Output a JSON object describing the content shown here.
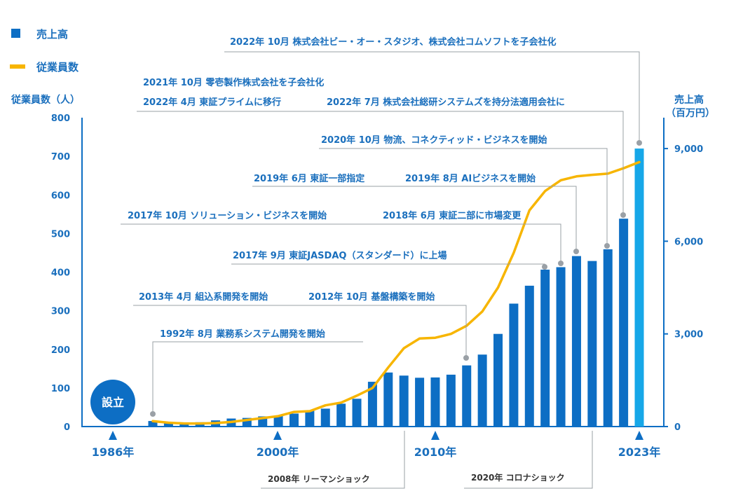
{
  "legend": {
    "sales_label": "売上高",
    "employees_label": "従業員数"
  },
  "colors": {
    "bar": "#0d6ec4",
    "bar_latest": "#16a7e8",
    "line": "#f7b500",
    "text": "#1a6fbd",
    "axis": "#0d6ec4",
    "marker": "#9aa0a6"
  },
  "chart_data": {
    "type": "bar",
    "title": "",
    "xlabel": "",
    "left_axis": {
      "title": "従業員数（人）",
      "min": 0,
      "max": 800,
      "ticks": [
        "0",
        "100",
        "200",
        "300",
        "400",
        "500",
        "600",
        "700",
        "800"
      ]
    },
    "right_axis": {
      "title_line1": "売上高",
      "title_line2": "（百万円）",
      "min": 0,
      "max": 10000,
      "ticks": [
        "0",
        "3,000",
        "6,000",
        "9,000"
      ]
    },
    "years": [
      1992,
      1993,
      1994,
      1995,
      1996,
      1997,
      1998,
      1999,
      2000,
      2001,
      2002,
      2003,
      2004,
      2005,
      2006,
      2007,
      2008,
      2009,
      2010,
      2011,
      2012,
      2013,
      2014,
      2015,
      2016,
      2017,
      2018,
      2019,
      2020,
      2021,
      2022,
      2023
    ],
    "series": [
      {
        "name": "売上高",
        "type": "bar",
        "axis": "right",
        "values": [
          180,
          150,
          130,
          140,
          200,
          260,
          280,
          330,
          340,
          420,
          510,
          580,
          740,
          900,
          1450,
          1750,
          1650,
          1580,
          1590,
          1680,
          1980,
          2330,
          3000,
          3980,
          4560,
          5080,
          5160,
          5520,
          5360,
          5740,
          6730,
          9000
        ]
      },
      {
        "name": "従業員数",
        "type": "line",
        "axis": "left",
        "values": [
          14,
          10,
          8,
          8,
          9,
          12,
          17,
          22,
          27,
          38,
          40,
          55,
          62,
          80,
          100,
          153,
          203,
          228,
          230,
          240,
          261,
          298,
          360,
          450,
          560,
          610,
          638,
          648,
          652,
          655,
          669,
          685
        ]
      }
    ],
    "x_year_labels": [
      "1986年",
      "2000年",
      "2010年",
      "2023年"
    ],
    "founding_label": "設立",
    "events": [
      "1992年 8月 業務系システム開発を開始",
      "2013年 4月 組込系開発を開始",
      "2012年 10月 基盤構築を開始",
      "2017年 9月 東証JASDAQ（スタンダード）に上場",
      "2017年 10月 ソリューション・ビジネスを開始",
      "2018年 6月 東証二部に市場変更",
      "2019年 6月 東証一部指定",
      "2019年 8月 AIビジネスを開始",
      "2020年 10月 物流、コネクティッド・ビジネスを開始",
      "2021年 10月 零壱製作株式会社を子会社化",
      "2022年 4月 東証プライムに移行",
      "2022年 7月 株式会社総研システムズを持分法適用会社に",
      "2022年 10月 株式会社ビー・オー・スタジオ、株式会社コムソフトを子会社化"
    ],
    "shocks": [
      "2008年 リーマンショック",
      "2020年 コロナショック"
    ]
  }
}
